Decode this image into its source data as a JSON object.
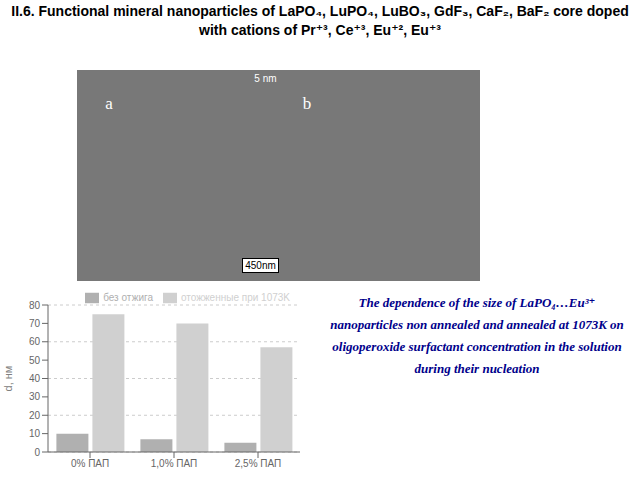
{
  "chart_data": {
    "type": "bar",
    "title": "II.6. Functional mineral nanoparticles of LaPO₄, LuPO₄, LuBO₃, GdF₃, CaF₂, BaF₂ core doped with cations of Pr⁺³, Ce⁺³, Eu⁺², Eu⁺³",
    "annotations": [
      "a",
      "b",
      "5 nm",
      "450nm",
      "The dependence of the size of LaPO₄…Eu³⁺ nanoparticles non annealed and annealed at 1073K on oligoperoxide surfactant concentration in the solution during their nucleation"
    ],
    "categories": [
      "0% ПАП",
      "1,0% ПАП",
      "2,5% ПАП"
    ],
    "series": [
      {
        "name": "без отжига",
        "color": "#b0b0b0",
        "values": [
          10,
          7,
          5
        ]
      },
      {
        "name": "отожженные при 1073K",
        "color": "#d0d0d0",
        "values": [
          75,
          70,
          57
        ]
      }
    ],
    "ylabel": "d, нм",
    "ylim": [
      0,
      80
    ],
    "yticks": [
      0,
      10,
      20,
      30,
      40,
      50,
      60,
      70,
      80
    ],
    "grid": true,
    "legend": "upper right"
  }
}
